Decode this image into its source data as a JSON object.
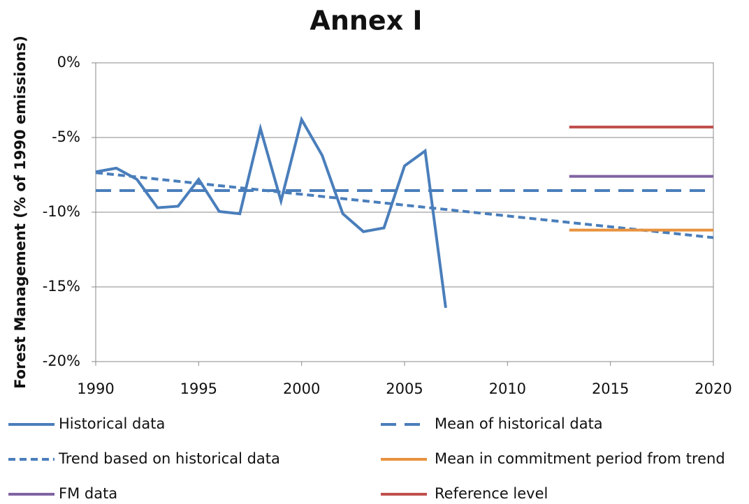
{
  "chart_data": {
    "type": "line",
    "title": "Annex I",
    "y_label": "Forest Management (% of 1990 emissions)",
    "xlim": [
      1990,
      2020
    ],
    "xticks": [
      1990,
      1995,
      2000,
      2005,
      2010,
      2015,
      2020
    ],
    "ylim": [
      -20,
      0
    ],
    "yticks": [
      {
        "value": -20,
        "label": "-20%"
      },
      {
        "value": -15,
        "label": "-15%"
      },
      {
        "value": -10,
        "label": "-10%"
      },
      {
        "value": -5,
        "label": "-5%"
      },
      {
        "value": 0,
        "label": "0%"
      }
    ],
    "grid": true,
    "series": [
      {
        "name": "Historical data",
        "color": "#4a7ebb",
        "line_style": "solid",
        "x": [
          1990,
          1991,
          1992,
          1993,
          1994,
          1995,
          1996,
          1997,
          1998,
          1999,
          2000,
          2001,
          2002,
          2003,
          2004,
          2005,
          2006,
          2007
        ],
        "values": [
          -7.3,
          -7.05,
          -7.8,
          -9.7,
          -9.6,
          -7.8,
          -9.95,
          -10.1,
          -4.4,
          -9.25,
          -3.8,
          -6.2,
          -10.1,
          -11.3,
          -11.05,
          -6.9,
          -5.9,
          -16.4
        ]
      },
      {
        "name": "Mean of historical data",
        "color": "#4a7ebb",
        "line_style": "dashed",
        "x": [
          1990,
          2020
        ],
        "values": [
          -8.55,
          -8.55
        ]
      },
      {
        "name": "Trend based on historical data",
        "color": "#4a7ebb",
        "line_style": "dotted",
        "x": [
          1990,
          2020
        ],
        "values": [
          -7.35,
          -11.7
        ]
      },
      {
        "name": "Mean in commitment period from trend",
        "color": "#e8923e",
        "line_style": "solid",
        "x": [
          2013,
          2020
        ],
        "values": [
          -11.2,
          -11.2
        ]
      },
      {
        "name": "FM data",
        "color": "#8064a2",
        "line_style": "solid",
        "x": [
          2013,
          2020
        ],
        "values": [
          -7.6,
          -7.6
        ]
      },
      {
        "name": "Reference level",
        "color": "#c0504d",
        "line_style": "solid",
        "x": [
          2013,
          2020
        ],
        "values": [
          -4.3,
          -4.3
        ]
      }
    ]
  }
}
